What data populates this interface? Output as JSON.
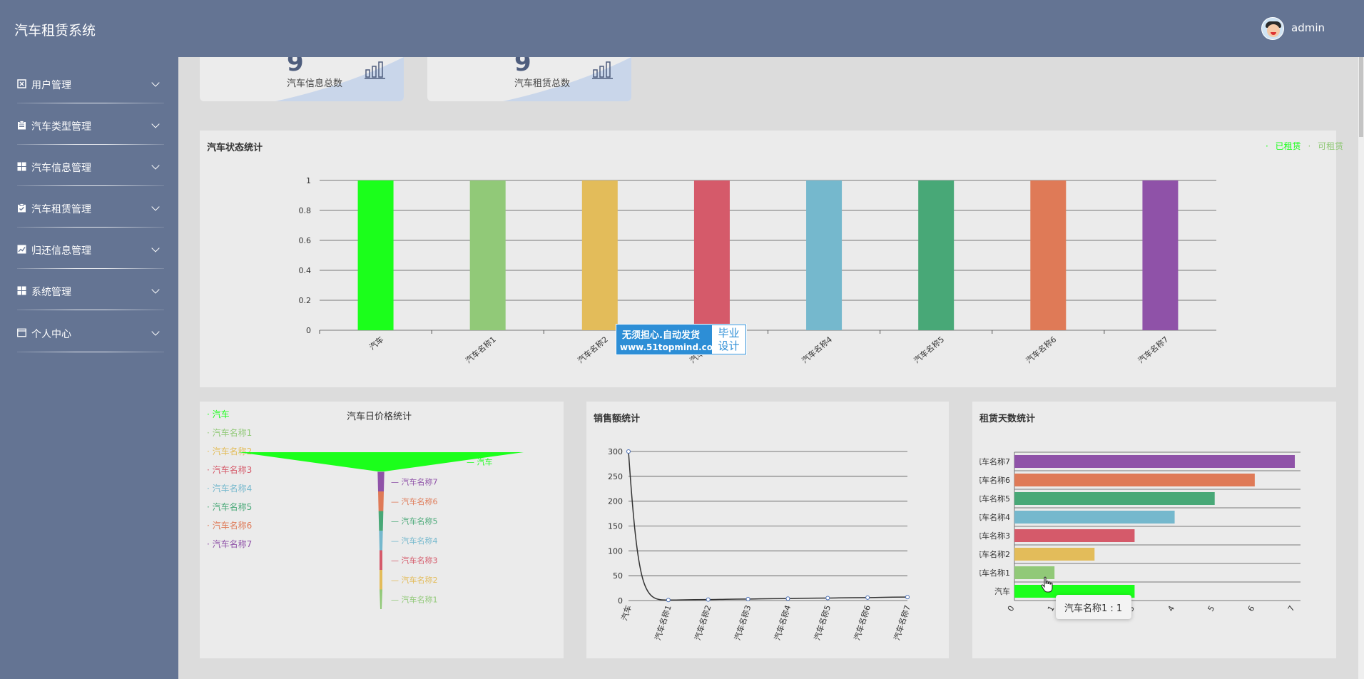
{
  "app": {
    "title": "汽车租赁系统"
  },
  "header": {
    "username": "admin"
  },
  "sidebar": {
    "items": [
      {
        "label": "用户管理",
        "icon": "user-doc-icon"
      },
      {
        "label": "汽车类型管理",
        "icon": "clipboard-icon"
      },
      {
        "label": "汽车信息管理",
        "icon": "grid-icon"
      },
      {
        "label": "汽车租赁管理",
        "icon": "clipboard-check-icon"
      },
      {
        "label": "归还信息管理",
        "icon": "line-chart-icon"
      },
      {
        "label": "系统管理",
        "icon": "grid-icon"
      },
      {
        "label": "个人中心",
        "icon": "window-icon"
      }
    ]
  },
  "stats": [
    {
      "number": "9",
      "label": "汽车信息总数"
    },
    {
      "number": "9",
      "label": "汽车租赁总数"
    }
  ],
  "colors": {
    "header": "#647493",
    "palette": [
      "#1bff1b",
      "#91c978",
      "#e3bc5a",
      "#d55a6a",
      "#75b8cd",
      "#48a877",
      "#df7a57",
      "#8f52a8"
    ]
  },
  "bar_panel": {
    "title": "汽车状态统计",
    "legend": [
      {
        "label": "已租赁",
        "color": "#1bff1b"
      },
      {
        "label": "可租赁",
        "color": "#91c978"
      }
    ]
  },
  "watermark": {
    "line1": "无须担心.自动发货",
    "line2": "www.51topmind.com",
    "box": "毕业\n设计"
  },
  "funnel_panel": {
    "title": "汽车日价格统计"
  },
  "line_panel": {
    "title": "销售额统计"
  },
  "hbar_panel": {
    "title": "租赁天数统计"
  },
  "tooltip": {
    "text": "汽车名称1 : 1"
  },
  "chart_data": [
    {
      "type": "bar",
      "title": "汽车状态统计",
      "categories": [
        "汽车",
        "汽车名称1",
        "汽车名称2",
        "汽车名称3",
        "汽车名称4",
        "汽车名称5",
        "汽车名称6",
        "汽车名称7"
      ],
      "values": [
        1,
        1,
        1,
        1,
        1,
        1,
        1,
        1
      ],
      "ylim": [
        0,
        1
      ],
      "yticks": [
        "0",
        "0.2",
        "0.4",
        "0.6",
        "0.8",
        "1"
      ],
      "legend": [
        "已租赁",
        "可租赁"
      ],
      "legend_position": "top-right",
      "grid": true
    },
    {
      "type": "funnel",
      "title": "汽车日价格统计",
      "categories": [
        "汽车",
        "汽车名称1",
        "汽车名称2",
        "汽车名称3",
        "汽车名称4",
        "汽车名称5",
        "汽车名称6",
        "汽车名称7"
      ],
      "values": [
        300,
        1,
        2,
        3,
        4,
        5,
        6,
        7
      ],
      "legend_position": "left"
    },
    {
      "type": "line",
      "title": "销售额统计",
      "categories": [
        "汽车",
        "汽车名称1",
        "汽车名称2",
        "汽车名称3",
        "汽车名称4",
        "汽车名称5",
        "汽车名称6",
        "汽车名称7"
      ],
      "values": [
        300,
        1,
        2,
        3,
        4,
        5,
        6,
        7
      ],
      "ylim": [
        0,
        300
      ],
      "yticks": [
        "0",
        "50",
        "100",
        "150",
        "200",
        "250",
        "300"
      ],
      "grid": true
    },
    {
      "type": "bar",
      "orientation": "horizontal",
      "title": "租赁天数统计",
      "categories": [
        "汽车",
        "汽车名称1",
        "汽车名称2",
        "汽车名称3",
        "汽车名称4",
        "汽车名称5",
        "汽车名称6",
        "汽车名称7"
      ],
      "values": [
        3,
        1,
        2,
        3,
        4,
        5,
        6,
        7
      ],
      "xlim": [
        0,
        7
      ],
      "xticks": [
        "0",
        "1",
        "2",
        "3",
        "4",
        "5",
        "6",
        "7"
      ],
      "grid": true
    }
  ]
}
